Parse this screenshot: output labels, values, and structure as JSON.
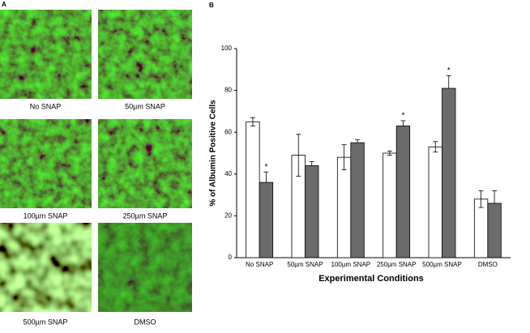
{
  "panel_a": {
    "label": "A",
    "images": [
      {
        "caption": "No SNAP"
      },
      {
        "caption": "50µm SNAP"
      },
      {
        "caption": "100µm SNAP"
      },
      {
        "caption": "250µm SNAP"
      },
      {
        "caption": "500µm SNAP"
      },
      {
        "caption": "DMSO"
      }
    ]
  },
  "chart_data": {
    "type": "bar",
    "panel_label": "B",
    "y_label": "% of Albumin Positive Cells",
    "x_label": "Experimental Conditions",
    "categories": [
      "No SNAP",
      "50µm SNAP",
      "100µm SNAP",
      "250µm SNAP",
      "500µm SNAP",
      "DMSO"
    ],
    "series": [
      {
        "color": "#ffffff",
        "values": [
          65,
          49,
          48,
          50,
          53,
          28
        ],
        "errors": [
          2,
          10,
          6,
          1,
          2.5,
          4
        ]
      },
      {
        "color": "#6b6b6b",
        "values": [
          36,
          44,
          55,
          63,
          81,
          26
        ],
        "errors": [
          5,
          2,
          1.5,
          2.5,
          6,
          6
        ]
      }
    ],
    "markers": [
      "*",
      null,
      null,
      "*",
      "*",
      null
    ],
    "ylim": [
      0,
      100
    ],
    "yticks": [
      0,
      20,
      40,
      60,
      80,
      100
    ]
  }
}
